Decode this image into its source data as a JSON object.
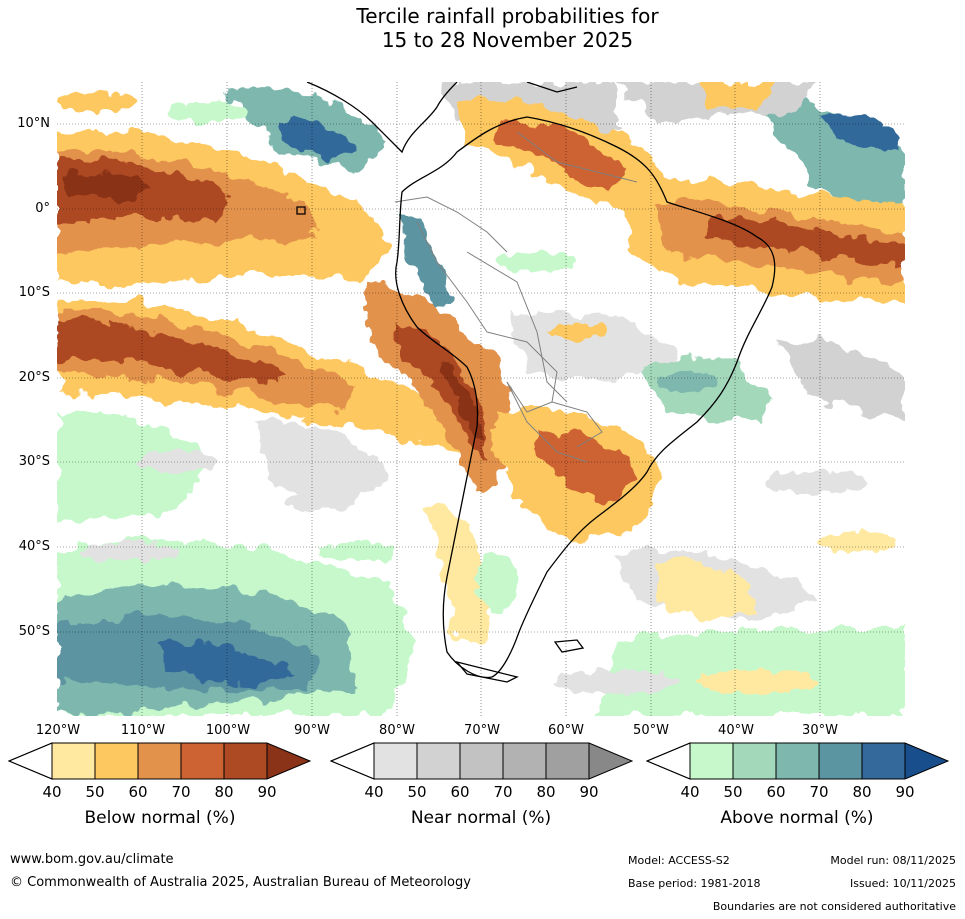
{
  "title": {
    "line1": "Tercile rainfall probabilities for",
    "line2": "15 to 28 November 2025"
  },
  "map": {
    "region": "South America and surrounding oceans",
    "lat_labels": [
      "10°N",
      "0°",
      "10°S",
      "20°S",
      "30°S",
      "40°S",
      "50°S"
    ],
    "lon_labels": [
      "120°W",
      "110°W",
      "100°W",
      "90°W",
      "80°W",
      "70°W",
      "60°W",
      "50°W",
      "40°W",
      "30°W"
    ]
  },
  "legend": {
    "below": {
      "title": "Below normal (%)",
      "ticks": [
        "40",
        "50",
        "60",
        "70",
        "80",
        "90"
      ],
      "colors": [
        "#ffe9a0",
        "#fdc85f",
        "#e3924c",
        "#cd6232",
        "#ad4a24",
        "#8a3318"
      ]
    },
    "near": {
      "title": "Near normal (%)",
      "ticks": [
        "40",
        "50",
        "60",
        "70",
        "80",
        "90"
      ],
      "colors": [
        "#e2e2e2",
        "#d2d2d2",
        "#c2c2c2",
        "#b2b2b2",
        "#a0a0a0",
        "#888888"
      ]
    },
    "above": {
      "title": "Above normal (%)",
      "ticks": [
        "40",
        "50",
        "60",
        "70",
        "80",
        "90"
      ],
      "colors": [
        "#c6f8cc",
        "#a3d8bb",
        "#7db7ae",
        "#5b95a1",
        "#33699b",
        "#184e8c"
      ]
    }
  },
  "footer": {
    "website": "www.bom.gov.au/climate",
    "copyright": "© Commonwealth of Australia 2025, Australian Bureau of Meteorology",
    "model": "Model: ACCESS-S2",
    "model_run": "Model run: 08/11/2025",
    "base_period": "Base period: 1981-2018",
    "issued": "Issued: 10/11/2025",
    "disclaimer": "Boundaries are not considered authoritative"
  }
}
